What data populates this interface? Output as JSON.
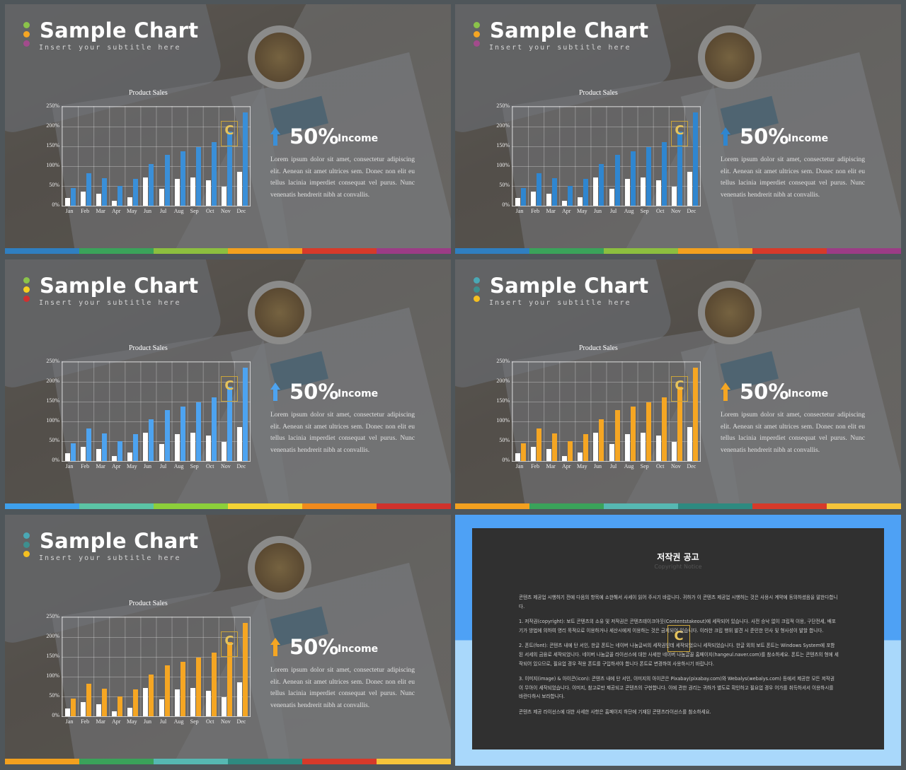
{
  "slides": [
    {
      "title": "Sample Chart",
      "subtitle": "Insert your subtitle here",
      "dots": [
        "#8bc34a",
        "#f5a623",
        "#a24b8c"
      ],
      "bar_color": "#3a8fd8",
      "arrow_color": "#3a8fd8",
      "strip": [
        "#2f7fc1",
        "#3aa35a",
        "#8cbf3f",
        "#f2a01f",
        "#d63a2a",
        "#9b3c86"
      ]
    },
    {
      "title": "Sample Chart",
      "subtitle": "Insert your subtitle here",
      "dots": [
        "#8bc34a",
        "#f5a623",
        "#a24b8c"
      ],
      "bar_color": "#2f86d0",
      "arrow_color": "#2f86d0",
      "strip": [
        "#2f7fc1",
        "#3aa35a",
        "#8cbf3f",
        "#f2a01f",
        "#d63a2a",
        "#9b3c86"
      ]
    },
    {
      "title": "Sample Chart",
      "subtitle": "Insert your subtitle here",
      "dots": [
        "#8bc34a",
        "#f5d020",
        "#d03030"
      ],
      "bar_color": "#4da3f0",
      "arrow_color": "#4da3f0",
      "strip": [
        "#3ea0ec",
        "#5bc4a5",
        "#8ccf3a",
        "#f3d334",
        "#f08a1c",
        "#d0322c"
      ]
    },
    {
      "title": "Sample Chart",
      "subtitle": "Insert your subtitle here",
      "dots": [
        "#4aa8b5",
        "#3d8f8f",
        "#f5c020"
      ],
      "bar_color": "#f5a623",
      "arrow_color": "#f5a623",
      "strip": [
        "#f2a01f",
        "#3aa35a",
        "#56b8b2",
        "#2e8a80",
        "#d63a2a",
        "#f5c43a"
      ]
    },
    {
      "title": "Sample Chart",
      "subtitle": "Insert your subtitle here",
      "dots": [
        "#4aa8b5",
        "#3d8f8f",
        "#f5c020"
      ],
      "bar_color": "#f5a623",
      "arrow_color": "#f5a623",
      "strip": [
        "#f2a01f",
        "#3aa35a",
        "#56b8b2",
        "#2e8a80",
        "#d63a2a",
        "#f5c43a"
      ]
    }
  ],
  "stat": {
    "percent": "50%",
    "label": "Income"
  },
  "lorem": "Lorem ipsum dolor sit amet, consectetur adipiscing elit. Aenean sit amet ultrices sem. Donec non elit eu tellus lacinia imperdiet consequat vel purus. Nunc venenatis hendrerit nibh at convallis.",
  "logo_letter": "C",
  "chart_data": {
    "type": "bar",
    "title": "Product Sales",
    "categories": [
      "Jan",
      "Feb",
      "Mar",
      "Apr",
      "May",
      "Jun",
      "Jul",
      "Aug",
      "Sep",
      "Oct",
      "Nov",
      "Dec"
    ],
    "yticks": [
      "250%",
      "200%",
      "150%",
      "100%",
      "50%",
      "0%"
    ],
    "ylim": [
      0,
      250
    ],
    "series": [
      {
        "values": [
          20,
          35,
          30,
          12,
          22,
          72,
          42,
          68,
          72,
          65,
          48,
          85
        ]
      },
      {
        "values": [
          45,
          82,
          70,
          50,
          68,
          105,
          128,
          138,
          148,
          160,
          188,
          235
        ]
      }
    ]
  },
  "copyright": {
    "title": "저작권 공고",
    "subtitle": "Copyright Notice",
    "paragraphs": [
      "콘텐츠 제공업 시행하기 전에 다음의 항목에 소한해서 사세이 읽어 주시기 바랍니다. 귀하가 이 콘텐츠 제공업 시행하는 것은 사용시 계약에 동의하셨음을 말한다합니다.",
      "1. 저작권(copyright): 보트 콘텐츠의 소유 및 저작권은 콘텐츠테이크아웃(Contentstakeout)에 세작되어 있습니다. 사전 승낙 없이 크립적 이용, 구단전세, 배포 기가 방법에 의하여 영리 목적으로 이용하거나 세산시에게 이용하는 것은 금지되어 있습니다. 이러한 크립 행위 발견 시 준민한 민사 및 형사성이 발할 합니다.",
      "2. 폰트(font): 콘텐츠 내에 탄 서인, 한글 폰트는 네이버 나눔글씨의 세작권인데 세작되었으니 세작되었습니다. 한글 외의 보트 폰트는 Windows System에 포함된 서세의 금융로 세작되었니다. 네이버 나눔글꼴 라이선스에 대한 사세한 네이버 나눔글꼴 홈페이지(hangeul.naver.com)를 참소하세요. 폰트는 콘텐츠의 형에 세작되어 있으므로, 필요업 경우 적용 폰트를 구입하셔야 합니다 폰트로 변경하여 사용하시기 바랍니다.",
      "3. 이미지(image) & 아이콘(icon): 콘텐츠 내에 탄 서인, 이미지의 아이콘은 Pixabay(pixabay.com)와 Webalys(webalys.com) 등에서 제공한 모든 저작권 이 무아이 세작되었습니다. 이미지, 참고로만 제공되고 콘텐츠의 구현합니다. 이에 관한 권리는 귀하가 별도로 확인하고 필요업 경우 어가를 취득하셔서 이용하시를 바란다하시 보라합니다.",
      "콘텐츠 제공 라이선스에 대한 사세한 사항은 홈페이지 하단에 기재된 콘텐츠라이선스를 참소하세요."
    ]
  }
}
